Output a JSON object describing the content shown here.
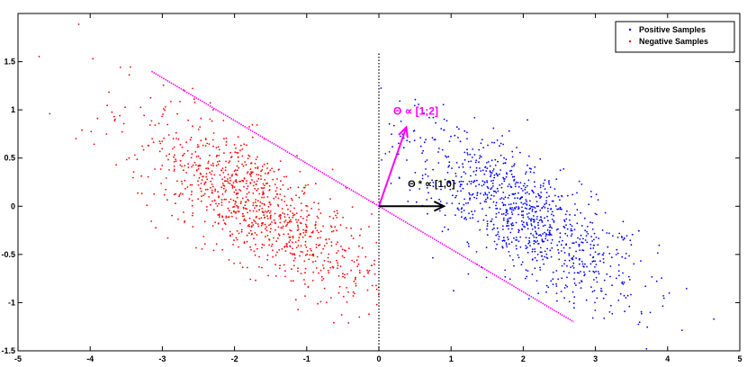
{
  "chart_data": {
    "type": "scatter",
    "title": "",
    "xlabel": "",
    "ylabel": "",
    "xlim": [
      -5,
      5
    ],
    "ylim": [
      -1.5,
      2
    ],
    "xticks": [
      -5,
      -4,
      -3,
      -2,
      -1,
      0,
      1,
      2,
      3,
      4,
      5
    ],
    "yticks": [
      -1.5,
      -1,
      -0.5,
      0,
      0.5,
      1,
      1.5
    ],
    "xtick_labels": [
      "-5",
      "-4",
      "-3",
      "-2",
      "-1",
      "0",
      "1",
      "2",
      "3",
      "4",
      "5"
    ],
    "ytick_labels": [
      "-1.5",
      "-1",
      "-0.5",
      "0",
      "0.5",
      "1",
      "1.5"
    ],
    "grid": false,
    "legend": {
      "placement": "top-right",
      "entries": [
        {
          "label": "Positive Samples",
          "color": "#0000ff",
          "marker": "dot"
        },
        {
          "label": "Negative Samples",
          "color": "#ff0000",
          "marker": "dot"
        }
      ]
    },
    "series": [
      {
        "name": "Positive Samples",
        "color": "#0000ff",
        "distribution": {
          "count": 1000,
          "center": [
            2.0,
            -0.1
          ],
          "principal_direction": [
            1,
            -0.5
          ],
          "spread_major": 0.9,
          "spread_minor": 0.28,
          "x_min": 0.0
        }
      },
      {
        "name": "Negative Samples",
        "color": "#ff0000",
        "distribution": {
          "count": 1000,
          "center": [
            -1.7,
            0.0
          ],
          "principal_direction": [
            1,
            -0.5
          ],
          "spread_major": 0.9,
          "spread_minor": 0.28,
          "x_max": 0.0
        }
      }
    ],
    "reference_lines": [
      {
        "name": "vertical-dotted-line",
        "x": [
          0,
          0
        ],
        "y": [
          -1.5,
          1.6
        ],
        "color": "#000000",
        "style": "dotted"
      },
      {
        "name": "decision-boundary",
        "x": [
          -3.15,
          2.7
        ],
        "y": [
          1.4,
          -1.2
        ],
        "color": "#ff00ff",
        "style": "dotted"
      }
    ],
    "arrows": [
      {
        "name": "theta-arrow",
        "from": [
          0,
          0
        ],
        "to": [
          0.38,
          0.82
        ],
        "color": "#ff00ff"
      },
      {
        "name": "theta-star-arrow",
        "from": [
          0,
          0
        ],
        "to": [
          0.9,
          0.0
        ],
        "color": "#000000"
      }
    ],
    "annotations": [
      {
        "name": "theta-annotation",
        "text": "Θ ∝ [1;2]",
        "x": 0.2,
        "y": 0.95,
        "color": "#ff00ff"
      },
      {
        "name": "theta-star-annotation",
        "text": "Θ * ∝ [1,0]",
        "x": 0.4,
        "y": 0.2,
        "color": "#000000"
      }
    ]
  }
}
